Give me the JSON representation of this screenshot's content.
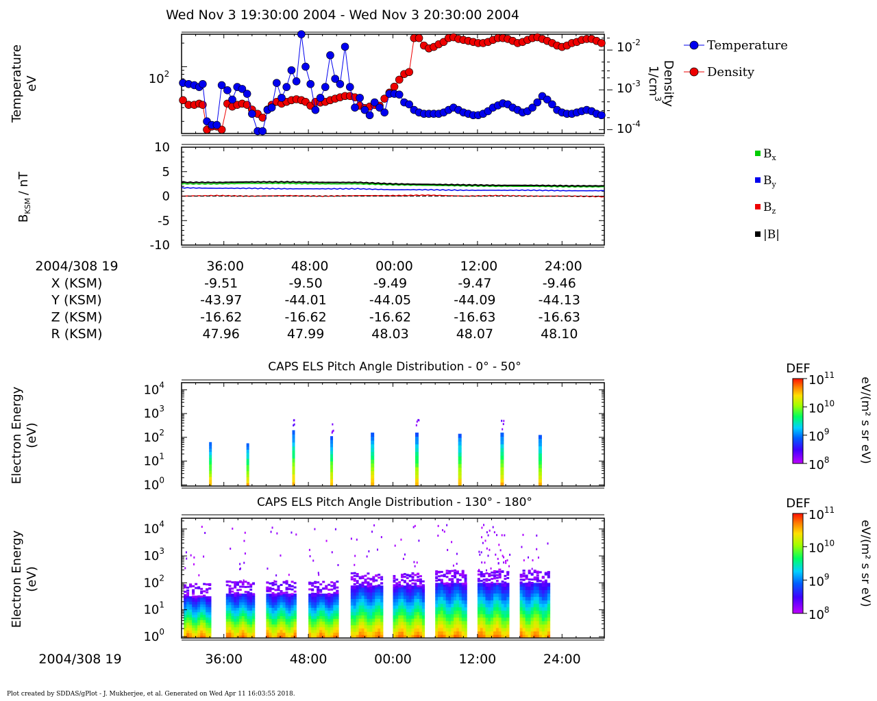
{
  "title": "Wed Nov 3 19:30:00 2004 - Wed Nov 3 20:30:00 2004",
  "footer": "Plot created by SDDAS/gPlot - J. Mukherjee, et al.  Generated on Wed Apr 11 16:03:55 2018.",
  "time_axis": {
    "start_label": "2004/308 19",
    "tick_labels": [
      "36:00",
      "48:00",
      "00:00",
      "12:00",
      "24:00"
    ]
  },
  "ephemeris": {
    "rows": [
      {
        "label": "X (KSM)",
        "values": [
          "-9.51",
          "-9.50",
          "-9.49",
          "-9.47",
          "-9.46"
        ]
      },
      {
        "label": "Y (KSM)",
        "values": [
          "-43.97",
          "-44.01",
          "-44.05",
          "-44.09",
          "-44.13"
        ]
      },
      {
        "label": "Z (KSM)",
        "values": [
          "-16.62",
          "-16.62",
          "-16.62",
          "-16.63",
          "-16.63"
        ]
      },
      {
        "label": "R (KSM)",
        "values": [
          "47.96",
          "47.99",
          "48.03",
          "48.07",
          "48.10"
        ]
      }
    ]
  },
  "colors": {
    "temperature": "#0000ee",
    "density": "#ee0000",
    "bx": "#00cc00",
    "by": "#0000ee",
    "bz": "#ee0000",
    "bmag": "#000000"
  },
  "chart_data": [
    {
      "type": "scatter",
      "panel": "plasma",
      "ylabel": "Temperature",
      "yunit": "eV",
      "y2label": "Density",
      "y2unit": "1/cm",
      "y2unit_sup": "3",
      "legend": [
        "Temperature",
        "Density"
      ],
      "yscale": "log",
      "ylim": [
        14,
        260
      ],
      "y2lim": [
        8e-05,
        0.025
      ],
      "xlim_minutes": [
        30,
        90
      ],
      "y_tick_labels": [
        {
          "base": "10",
          "exp": "2"
        }
      ],
      "y2_tick_labels": [
        {
          "base": "10",
          "exp": "-2"
        },
        {
          "base": "10",
          "exp": "-3"
        },
        {
          "base": "10",
          "exp": "-4"
        }
      ],
      "series": [
        {
          "name": "Temperature",
          "x": [
            30.2,
            31.0,
            31.8,
            32.5,
            33.0,
            33.6,
            34.3,
            35.0,
            35.7,
            36.5,
            37.2,
            37.9,
            38.6,
            39.3,
            40.0,
            40.8,
            41.5,
            42.2,
            42.8,
            43.5,
            44.2,
            44.9,
            45.6,
            46.3,
            47.0,
            47.6,
            48.3,
            49.0,
            49.7,
            50.4,
            51.1,
            51.8,
            52.5,
            53.2,
            53.9,
            54.6,
            55.3,
            56.0,
            56.7,
            57.4,
            58.1,
            58.8,
            59.5,
            60.2,
            60.9,
            61.6,
            62.3,
            63.0,
            63.7,
            64.4,
            65.1,
            65.8,
            66.5,
            67.2,
            67.9,
            68.6,
            69.3,
            70.0,
            70.7,
            71.4,
            72.1,
            72.8,
            73.5,
            74.2,
            74.9,
            75.6,
            76.3,
            77.0,
            77.7,
            78.4,
            79.1,
            79.8,
            80.5,
            81.2,
            81.9,
            82.6,
            83.3,
            84.0,
            84.7,
            85.4,
            86.1,
            86.8,
            87.5,
            88.2,
            88.9,
            89.6
          ],
          "y": [
            62,
            60,
            58,
            55,
            60,
            20,
            18,
            18,
            58,
            50,
            38,
            55,
            52,
            45,
            25,
            15,
            15,
            28,
            30,
            62,
            40,
            55,
            90,
            65,
            260,
            100,
            60,
            28,
            40,
            55,
            140,
            70,
            60,
            180,
            55,
            30,
            40,
            28,
            24,
            35,
            30,
            26,
            45,
            45,
            44,
            35,
            33,
            28,
            26,
            25,
            25,
            25,
            25,
            26,
            28,
            30,
            28,
            26,
            25,
            24,
            24,
            25,
            27,
            30,
            32,
            34,
            33,
            30,
            28,
            26,
            27,
            30,
            35,
            42,
            38,
            33,
            28,
            26,
            25,
            25,
            26,
            27,
            28,
            27,
            25,
            24
          ]
        },
        {
          "name": "Density",
          "x": [
            30.2,
            31.0,
            31.8,
            32.5,
            33.0,
            33.6,
            34.3,
            35.0,
            35.7,
            36.5,
            37.2,
            37.9,
            38.6,
            39.3,
            40.0,
            40.8,
            41.5,
            42.2,
            42.8,
            43.5,
            44.2,
            44.9,
            45.6,
            46.3,
            47.0,
            47.6,
            48.3,
            49.0,
            49.7,
            50.4,
            51.1,
            51.8,
            52.5,
            53.2,
            53.9,
            54.6,
            55.3,
            56.0,
            56.7,
            57.4,
            58.1,
            58.8,
            59.5,
            60.2,
            60.9,
            61.6,
            62.3,
            63.0,
            63.7,
            64.4,
            65.1,
            65.8,
            66.5,
            67.2,
            67.9,
            68.6,
            69.3,
            70.0,
            70.7,
            71.4,
            72.1,
            72.8,
            73.5,
            74.2,
            74.9,
            75.6,
            76.3,
            77.0,
            77.7,
            78.4,
            79.1,
            79.8,
            80.5,
            81.2,
            81.9,
            82.6,
            83.3,
            84.0,
            84.7,
            85.4,
            86.1,
            86.8,
            87.5,
            88.2,
            88.9,
            89.6
          ],
          "y": [
            0.00055,
            0.00042,
            0.00042,
            0.00045,
            0.00042,
            0.0001,
            0.00012,
            0.00012,
            0.0001,
            0.00045,
            0.00038,
            0.00042,
            0.00045,
            0.00042,
            0.00032,
            0.00025,
            0.0002,
            0.00032,
            0.00042,
            0.0005,
            0.00045,
            0.0005,
            0.00055,
            0.00058,
            0.00055,
            0.0005,
            0.0004,
            0.0005,
            0.00048,
            0.0005,
            0.00055,
            0.0006,
            0.00065,
            0.0007,
            0.0007,
            0.00065,
            0.0004,
            0.00035,
            0.00038,
            0.00042,
            0.0004,
            0.0006,
            0.00085,
            0.0012,
            0.0018,
            0.0025,
            0.0028,
            0.02,
            0.02,
            0.013,
            0.011,
            0.012,
            0.014,
            0.016,
            0.02,
            0.021,
            0.019,
            0.018,
            0.017,
            0.016,
            0.015,
            0.015,
            0.016,
            0.018,
            0.02,
            0.02,
            0.019,
            0.017,
            0.015,
            0.016,
            0.018,
            0.02,
            0.021,
            0.019,
            0.017,
            0.015,
            0.013,
            0.012,
            0.013,
            0.015,
            0.016,
            0.018,
            0.019,
            0.019,
            0.017,
            0.015
          ]
        }
      ]
    },
    {
      "type": "line",
      "panel": "magnetic_field",
      "ylabel": "B",
      "ylabel_sub": "KSM",
      "yunit": "/ nT",
      "ylim": [
        -10,
        10
      ],
      "y_tick_labels": [
        "10",
        "5",
        "0",
        "-5",
        "-10"
      ],
      "xlim_minutes": [
        30,
        90
      ],
      "legend": [
        {
          "name": "B",
          "sub": "x"
        },
        {
          "name": "B",
          "sub": "y"
        },
        {
          "name": "B",
          "sub": "z"
        },
        {
          "name": "|B|",
          "sub": ""
        }
      ],
      "series": [
        {
          "name": "Bx",
          "x": [
            30,
            35,
            40,
            45,
            50,
            55,
            60,
            65,
            70,
            75,
            80,
            85,
            90
          ],
          "y": [
            2.5,
            2.5,
            2.6,
            2.6,
            2.5,
            2.5,
            2.3,
            2.2,
            2.1,
            2.0,
            2.0,
            1.9,
            1.9
          ]
        },
        {
          "name": "By",
          "x": [
            30,
            35,
            40,
            45,
            50,
            55,
            60,
            65,
            70,
            75,
            80,
            85,
            90
          ],
          "y": [
            1.7,
            1.6,
            1.6,
            1.5,
            1.5,
            1.5,
            1.3,
            1.3,
            1.2,
            1.2,
            1.2,
            1.1,
            1.1
          ]
        },
        {
          "name": "Bz",
          "x": [
            30,
            35,
            40,
            45,
            50,
            55,
            60,
            65,
            70,
            75,
            80,
            85,
            90
          ],
          "y": [
            0.0,
            0.1,
            0.0,
            0.1,
            0.0,
            0.1,
            0.1,
            0.2,
            0.0,
            0.1,
            0.0,
            0.0,
            -0.1
          ]
        },
        {
          "name": "|B|",
          "x": [
            30,
            35,
            40,
            45,
            50,
            55,
            60,
            65,
            70,
            75,
            80,
            85,
            90
          ],
          "y": [
            2.8,
            2.8,
            2.9,
            2.9,
            2.8,
            2.8,
            2.5,
            2.4,
            2.3,
            2.2,
            2.2,
            2.1,
            2.1
          ]
        }
      ]
    },
    {
      "type": "heatmap",
      "panel": "els_0_50",
      "title": "CAPS ELS Pitch Angle Distribution - 0° - 50°",
      "ylabel": "Electron Energy",
      "yunit": "(eV)",
      "yscale": "log",
      "y_tick_labels": [
        {
          "base": "10",
          "exp": "4"
        },
        {
          "base": "10",
          "exp": "3"
        },
        {
          "base": "10",
          "exp": "2"
        },
        {
          "base": "10",
          "exp": "1"
        },
        {
          "base": "10",
          "exp": "0"
        }
      ],
      "colorbar": {
        "label": "DEF",
        "unit": "eV/(m² s sr eV)",
        "min_exp": 8,
        "max_exp": 11,
        "tick_labels": [
          {
            "base": "10",
            "exp": "11"
          },
          {
            "base": "10",
            "exp": "10"
          },
          {
            "base": "10",
            "exp": "9"
          },
          {
            "base": "10",
            "exp": "8"
          }
        ]
      },
      "columns_minutes": [
        34.1,
        39.4,
        45.9,
        51.3,
        57.1,
        63.4,
        69.5,
        75.5,
        80.9
      ],
      "column_top_log10_eV": [
        1.8,
        1.75,
        2.3,
        2.05,
        2.2,
        2.2,
        2.15,
        2.2,
        2.1
      ]
    },
    {
      "type": "heatmap",
      "panel": "els_130_180",
      "title": "CAPS ELS Pitch Angle Distribution - 130° - 180°",
      "ylabel": "Electron Energy",
      "yunit": "(eV)",
      "yscale": "log",
      "y_tick_labels": [
        {
          "base": "10",
          "exp": "4"
        },
        {
          "base": "10",
          "exp": "3"
        },
        {
          "base": "10",
          "exp": "2"
        },
        {
          "base": "10",
          "exp": "1"
        },
        {
          "base": "10",
          "exp": "0"
        }
      ],
      "colorbar": {
        "label": "DEF",
        "unit": "eV/(m² s sr eV)",
        "min_exp": 8,
        "max_exp": 11,
        "tick_labels": [
          {
            "base": "10",
            "exp": "11"
          },
          {
            "base": "10",
            "exp": "10"
          },
          {
            "base": "10",
            "exp": "9"
          },
          {
            "base": "10",
            "exp": "8"
          }
        ]
      },
      "blocks_minutes": [
        [
          30.3,
          34.2
        ],
        [
          36.3,
          40.4
        ],
        [
          42.0,
          46.3
        ],
        [
          48.0,
          52.3
        ],
        [
          54.0,
          58.6
        ],
        [
          60.0,
          64.5
        ],
        [
          66.0,
          70.5
        ],
        [
          72.0,
          76.5
        ],
        [
          78.0,
          82.3
        ]
      ],
      "block_top_log10_eV": [
        1.5,
        1.6,
        1.6,
        1.6,
        1.9,
        1.9,
        2.0,
        2.0,
        2.0
      ]
    }
  ]
}
